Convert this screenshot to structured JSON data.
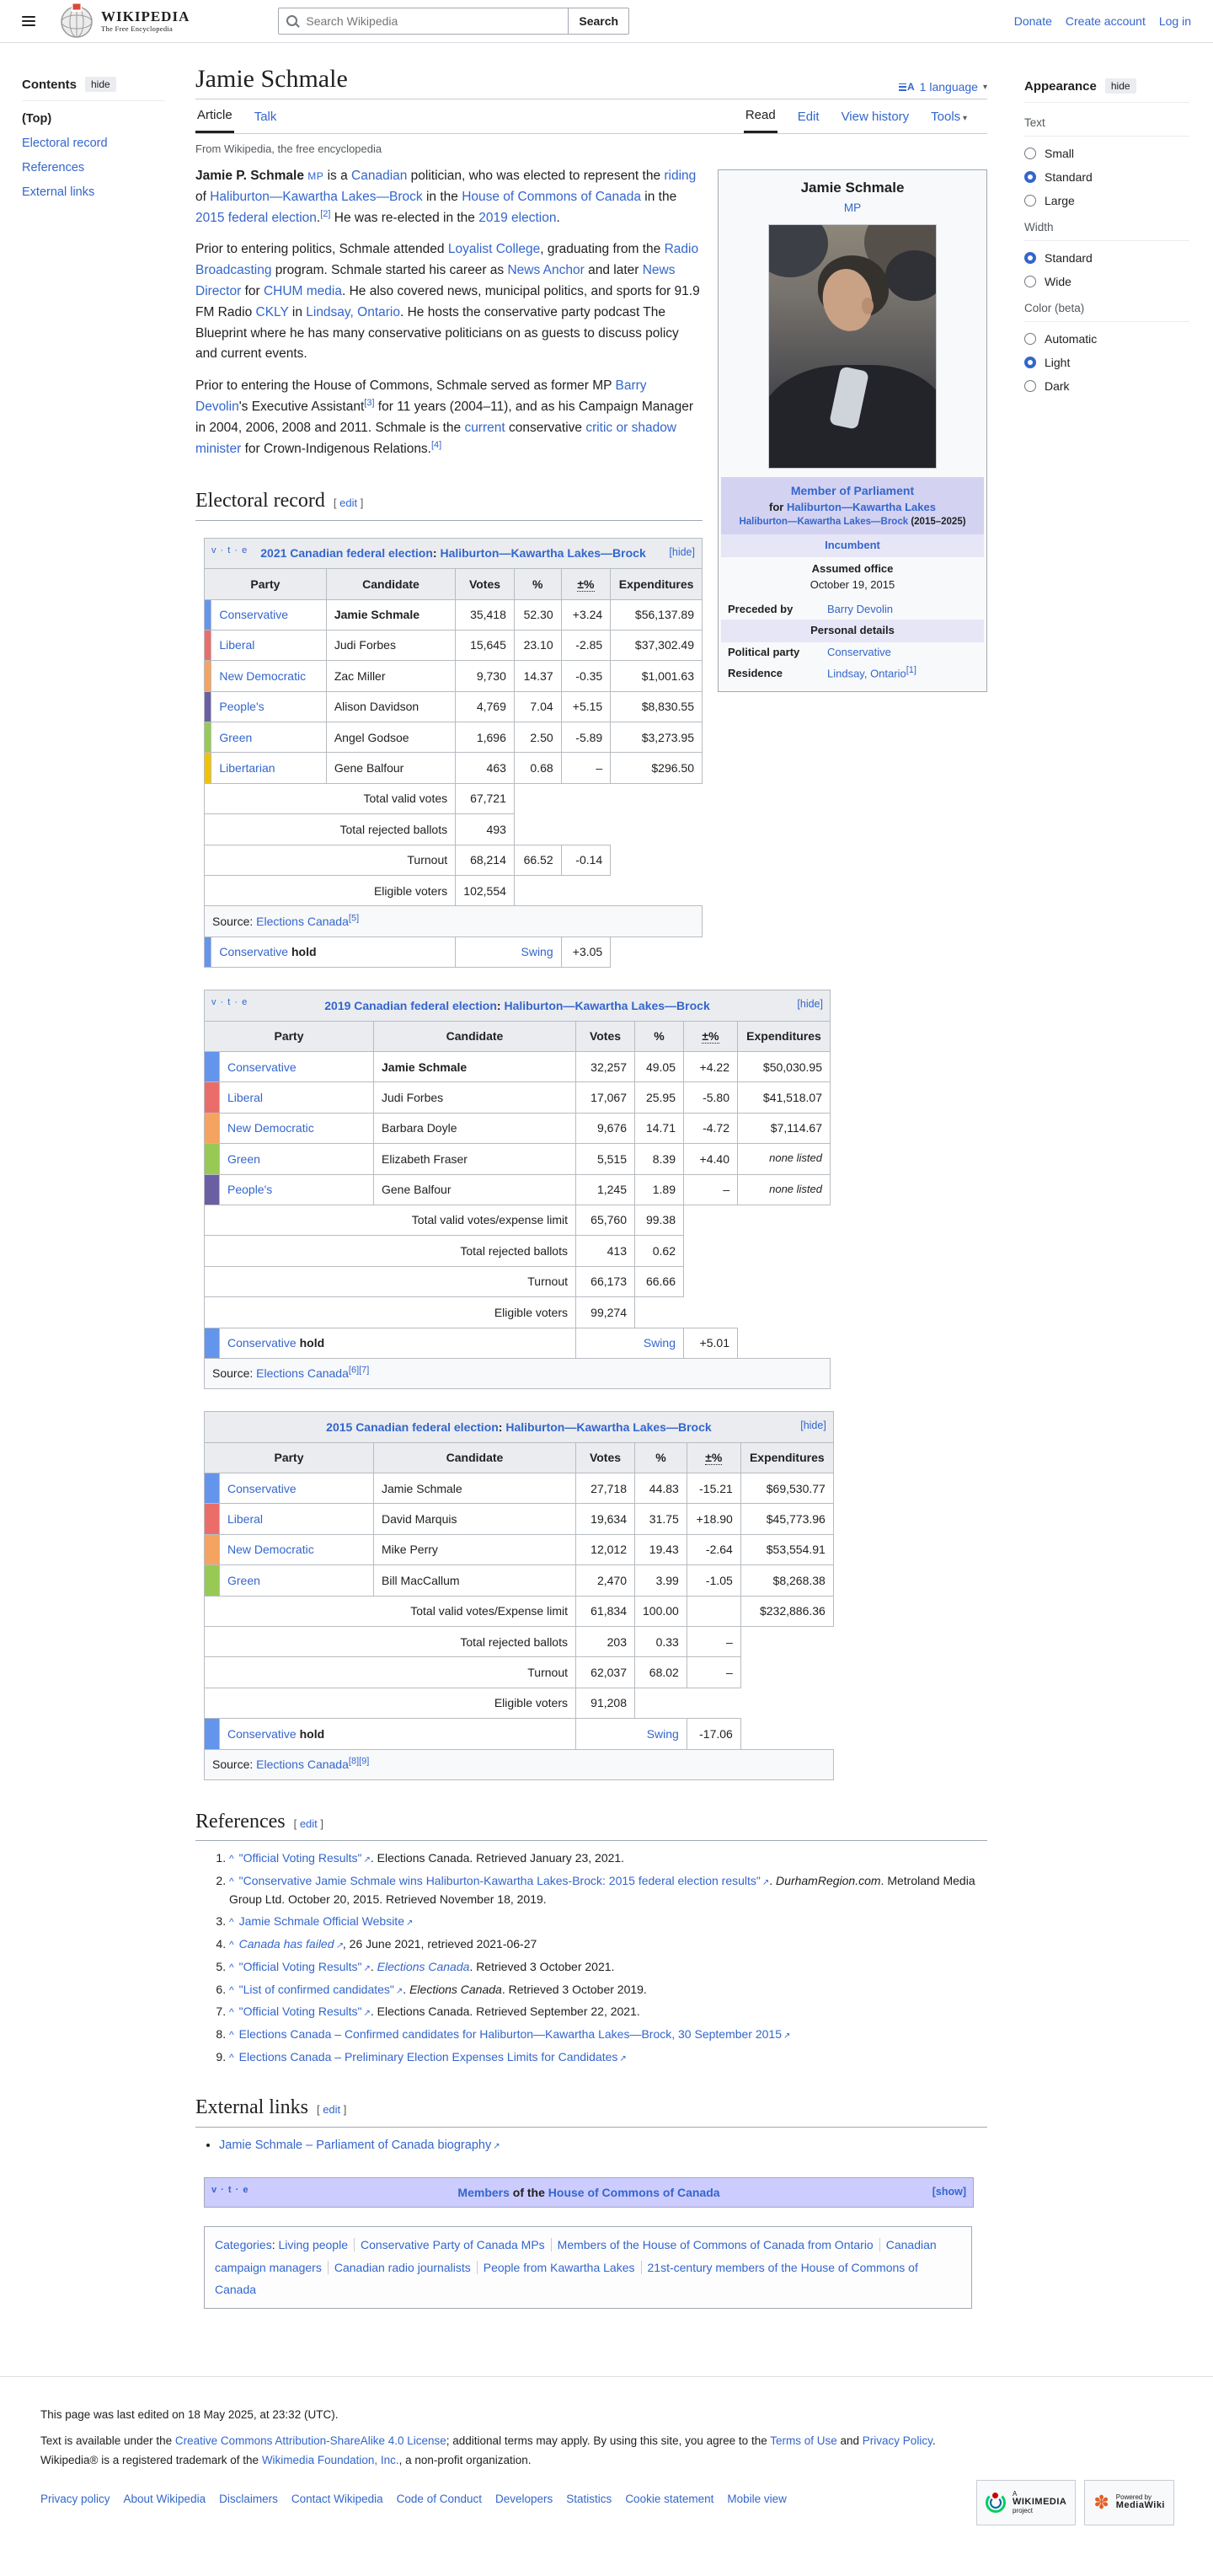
{
  "colors": {
    "link": "#3366cc",
    "table_header_bg": "#eaecf0",
    "navbox_title_bg": "#ccccff",
    "infobox_header_bg": "#d4d2f1",
    "conservative": "#6495ED",
    "liberal": "#EA6D6A",
    "ndp": "#F4A460",
    "peoples": "#6A5FA3",
    "green": "#99C955",
    "libertarian": "#F0C200"
  },
  "header": {
    "logo_title": "WIKIPEDIA",
    "logo_tagline": "The Free Encyclopedia",
    "search_placeholder": "Search Wikipedia",
    "search_button": "Search",
    "links": [
      "Donate",
      "Create account",
      "Log in"
    ]
  },
  "toc": {
    "title": "Contents",
    "hide": "hide",
    "items": [
      {
        "label": "(Top)",
        "active": true
      },
      {
        "label": "Electoral record",
        "active": false
      },
      {
        "label": "References",
        "active": false
      },
      {
        "label": "External links",
        "active": false
      }
    ]
  },
  "article": {
    "title": "Jamie Schmale",
    "language_count": "1 language",
    "tabs_left": [
      {
        "label": "Article",
        "active": true
      },
      {
        "label": "Talk",
        "active": false
      }
    ],
    "tabs_right": [
      {
        "label": "Read",
        "active": true
      },
      {
        "label": "Edit",
        "active": false
      },
      {
        "label": "View history",
        "active": false
      },
      {
        "label": "Tools",
        "active": false,
        "dropdown": true
      }
    ],
    "subtitle": "From Wikipedia, the free encyclopedia",
    "edit_label": "edit",
    "sections": {
      "electoral": "Electoral record",
      "references": "References",
      "external": "External links"
    }
  },
  "appearance": {
    "title": "Appearance",
    "hide": "hide",
    "sections": [
      {
        "title": "Text",
        "options": [
          "Small",
          "Standard",
          "Large"
        ],
        "selected": 1
      },
      {
        "title": "Width",
        "options": [
          "Standard",
          "Wide"
        ],
        "selected": 0
      },
      {
        "title": "Color (beta)",
        "options": [
          "Automatic",
          "Light",
          "Dark"
        ],
        "selected": 1
      }
    ]
  },
  "lead": {
    "p1": [
      {
        "t": "Jamie P. Schmale",
        "k": "b"
      },
      {
        "t": " ",
        "k": ""
      },
      {
        "t": "MP",
        "k": "mp"
      },
      {
        "t": " is a ",
        "k": ""
      },
      {
        "t": "Canadian",
        "k": "a"
      },
      {
        "t": " politician, who was elected to represent the ",
        "k": ""
      },
      {
        "t": "riding",
        "k": "a"
      },
      {
        "t": " of ",
        "k": ""
      },
      {
        "t": "Haliburton—Kawartha Lakes—Brock",
        "k": "a"
      },
      {
        "t": " in the ",
        "k": ""
      },
      {
        "t": "House of Commons of Canada",
        "k": "a"
      },
      {
        "t": " in the ",
        "k": ""
      },
      {
        "t": "2015 federal election",
        "k": "a"
      },
      {
        "t": ".",
        "k": ""
      },
      {
        "t": "[2]",
        "k": "s"
      },
      {
        "t": " He was re-elected in the ",
        "k": ""
      },
      {
        "t": "2019 election",
        "k": "a"
      },
      {
        "t": ".",
        "k": ""
      }
    ],
    "p2": [
      {
        "t": "Prior to entering politics, Schmale attended ",
        "k": ""
      },
      {
        "t": "Loyalist College",
        "k": "a"
      },
      {
        "t": ", graduating from the ",
        "k": ""
      },
      {
        "t": "Radio Broadcasting",
        "k": "a"
      },
      {
        "t": " program. Schmale started his career as ",
        "k": ""
      },
      {
        "t": "News Anchor",
        "k": "a"
      },
      {
        "t": " and later ",
        "k": ""
      },
      {
        "t": "News Director",
        "k": "a"
      },
      {
        "t": " for ",
        "k": ""
      },
      {
        "t": "CHUM media",
        "k": "a"
      },
      {
        "t": ". He also covered news, municipal politics, and sports for 91.9 FM Radio ",
        "k": ""
      },
      {
        "t": "CKLY",
        "k": "a"
      },
      {
        "t": " in ",
        "k": ""
      },
      {
        "t": "Lindsay, Ontario",
        "k": "a"
      },
      {
        "t": ". He hosts the conservative party podcast The Blueprint where he has many conservative politicians on as guests to discuss policy and current events.",
        "k": ""
      }
    ],
    "p3": [
      {
        "t": "Prior to entering the House of Commons, Schmale served as former MP ",
        "k": ""
      },
      {
        "t": "Barry Devolin",
        "k": "a"
      },
      {
        "t": "'s Executive Assistant",
        "k": ""
      },
      {
        "t": "[3]",
        "k": "s"
      },
      {
        "t": " for 11 years (2004–11), and as his Campaign Manager in 2004, 2006, 2008 and 2011. Schmale is the ",
        "k": ""
      },
      {
        "t": "current",
        "k": "a"
      },
      {
        "t": " conservative ",
        "k": ""
      },
      {
        "t": "critic or shadow minister",
        "k": "a"
      },
      {
        "t": " for Crown-Indigenous Relations.",
        "k": ""
      },
      {
        "t": "[4]",
        "k": "s"
      }
    ]
  },
  "infobox": {
    "name": "Jamie Schmale",
    "title": "MP",
    "office_line1": "Member of Parliament",
    "office_line2_prefix": "for ",
    "office_line2_link": "Haliburton—Kawartha Lakes",
    "office_line3_link": "Haliburton—Kawartha Lakes—Brock",
    "office_line3_suffix": " (2015–2025)",
    "incumbent": "Incumbent",
    "assumed_office_label": "Assumed office",
    "assumed_office_value": "October 19, 2015",
    "preceded_label": "Preceded by",
    "preceded_value": "Barry Devolin",
    "personal_header": "Personal details",
    "party_label": "Political party",
    "party_value": "Conservative",
    "residence_label": "Residence",
    "residence_value": "Lindsay, Ontario",
    "residence_ref": "[1]"
  },
  "tables": [
    {
      "vte": "v · t · e",
      "toggle": "[hide]",
      "title": [
        {
          "t": "2021 Canadian federal election",
          "k": "a"
        },
        {
          "t": ": ",
          "k": ""
        },
        {
          "t": "Haliburton—Kawartha Lakes—Brock",
          "k": "a"
        }
      ],
      "columns": [
        "Party",
        "Candidate",
        "Votes",
        "%",
        "±%",
        "Expenditures"
      ],
      "rows": [
        {
          "c": "#6495ED",
          "party": "Conservative",
          "cand": "Jamie Schmale",
          "bold": true,
          "v": "35,418",
          "p": "52.30",
          "d": "+3.24",
          "e": "$56,137.89"
        },
        {
          "c": "#EA6D6A",
          "party": "Liberal",
          "cand": "Judi Forbes",
          "bold": false,
          "v": "15,645",
          "p": "23.10",
          "d": "-2.85",
          "e": "$37,302.49"
        },
        {
          "c": "#F4A460",
          "party": "New Democratic",
          "cand": "Zac Miller",
          "bold": false,
          "v": "9,730",
          "p": "14.37",
          "d": "-0.35",
          "e": "$1,001.63"
        },
        {
          "c": "#6A5FA3",
          "party": "People's",
          "cand": "Alison Davidson",
          "bold": false,
          "v": "4,769",
          "p": "7.04",
          "d": "+5.15",
          "e": "$8,830.55"
        },
        {
          "c": "#99C955",
          "party": "Green",
          "cand": "Angel Godsoe",
          "bold": false,
          "v": "1,696",
          "p": "2.50",
          "d": "-5.89",
          "e": "$3,273.95"
        },
        {
          "c": "#F0C200",
          "party": "Libertarian",
          "cand": "Gene Balfour",
          "bold": false,
          "v": "463",
          "p": "0.68",
          "d": "–",
          "e": "$296.50"
        }
      ],
      "totals": [
        {
          "label": "Total valid votes",
          "v": "67,721",
          "p": "",
          "d": "",
          "e": ""
        },
        {
          "label": "Total rejected ballots",
          "v": "493",
          "p": "",
          "d": "",
          "e": ""
        },
        {
          "label": "Turnout",
          "v": "68,214",
          "p": "66.52",
          "d": "-0.14",
          "e": ""
        },
        {
          "label": "Eligible voters",
          "v": "102,554",
          "p": "",
          "d": "",
          "e": ""
        }
      ],
      "source": [
        {
          "t": "Source: ",
          "k": ""
        },
        {
          "t": "Elections Canada",
          "k": "a"
        },
        {
          "t": "[5]",
          "k": "s"
        }
      ],
      "hold": {
        "c": "#6495ED",
        "party": "Conservative",
        "word": "hold",
        "swing_label": "Swing",
        "swing": "+3.05"
      },
      "order": [
        "totals",
        "source",
        "hold"
      ]
    },
    {
      "vte": "v · t · e",
      "toggle": "[hide]",
      "title": [
        {
          "t": "2019 Canadian federal election",
          "k": "a"
        },
        {
          "t": ": ",
          "k": ""
        },
        {
          "t": "Haliburton—Kawartha Lakes—Brock",
          "k": "a"
        }
      ],
      "columns": [
        "Party",
        "Candidate",
        "Votes",
        "%",
        "±%",
        "Expenditures"
      ],
      "rows": [
        {
          "c": "#6495ED",
          "party": "Conservative",
          "cand": "Jamie Schmale",
          "bold": true,
          "v": "32,257",
          "p": "49.05",
          "d": "+4.22",
          "e": "$50,030.95"
        },
        {
          "c": "#EA6D6A",
          "party": "Liberal",
          "cand": "Judi Forbes",
          "bold": false,
          "v": "17,067",
          "p": "25.95",
          "d": "-5.80",
          "e": "$41,518.07"
        },
        {
          "c": "#F4A460",
          "party": "New Democratic",
          "cand": "Barbara Doyle",
          "bold": false,
          "v": "9,676",
          "p": "14.71",
          "d": "-4.72",
          "e": "$7,114.67"
        },
        {
          "c": "#99C955",
          "party": "Green",
          "cand": "Elizabeth Fraser",
          "bold": false,
          "v": "5,515",
          "p": "8.39",
          "d": "+4.40",
          "e": "none listed"
        },
        {
          "c": "#6A5FA3",
          "party": "People's",
          "cand": "Gene Balfour",
          "bold": false,
          "v": "1,245",
          "p": "1.89",
          "d": "–",
          "e": "none listed"
        }
      ],
      "totals": [
        {
          "label": "Total valid votes/expense limit",
          "v": "65,760",
          "p": "99.38",
          "d": "",
          "e": ""
        },
        {
          "label": "Total rejected ballots",
          "v": "413",
          "p": "0.62",
          "d": "",
          "e": ""
        },
        {
          "label": "Turnout",
          "v": "66,173",
          "p": "66.66",
          "d": "",
          "e": ""
        },
        {
          "label": "Eligible voters",
          "v": "99,274",
          "p": "",
          "d": "",
          "e": ""
        }
      ],
      "source": [
        {
          "t": "Source: ",
          "k": ""
        },
        {
          "t": "Elections Canada",
          "k": "a"
        },
        {
          "t": "[6][7]",
          "k": "s"
        }
      ],
      "hold": {
        "c": "#6495ED",
        "party": "Conservative",
        "word": "hold",
        "swing_label": "Swing",
        "swing": "+5.01"
      },
      "order": [
        "totals",
        "hold",
        "source"
      ]
    },
    {
      "vte": "",
      "toggle": "[hide]",
      "title": [
        {
          "t": "2015 Canadian federal election",
          "k": "a"
        },
        {
          "t": ": ",
          "k": ""
        },
        {
          "t": "Haliburton—Kawartha Lakes—Brock",
          "k": "a"
        }
      ],
      "columns": [
        "Party",
        "Candidate",
        "Votes",
        "%",
        "±%",
        "Expenditures"
      ],
      "rows": [
        {
          "c": "#6495ED",
          "party": "Conservative",
          "cand": "Jamie Schmale",
          "bold": false,
          "v": "27,718",
          "p": "44.83",
          "d": "-15.21",
          "e": "$69,530.77"
        },
        {
          "c": "#EA6D6A",
          "party": "Liberal",
          "cand": "David Marquis",
          "bold": false,
          "v": "19,634",
          "p": "31.75",
          "d": "+18.90",
          "e": "$45,773.96"
        },
        {
          "c": "#F4A460",
          "party": "New Democratic",
          "cand": "Mike Perry",
          "bold": false,
          "v": "12,012",
          "p": "19.43",
          "d": "-2.64",
          "e": "$53,554.91"
        },
        {
          "c": "#99C955",
          "party": "Green",
          "cand": "Bill MacCallum",
          "bold": false,
          "v": "2,470",
          "p": "3.99",
          "d": "-1.05",
          "e": "$8,268.38"
        }
      ],
      "totals": [
        {
          "label": "Total valid votes/Expense limit",
          "v": "61,834",
          "p": "100.00",
          "d": "",
          "e": "$232,886.36"
        },
        {
          "label": "Total rejected ballots",
          "v": "203",
          "p": "0.33",
          "d": "–",
          "e": ""
        },
        {
          "label": "Turnout",
          "v": "62,037",
          "p": "68.02",
          "d": "–",
          "e": ""
        },
        {
          "label": "Eligible voters",
          "v": "91,208",
          "p": "",
          "d": "",
          "e": ""
        }
      ],
      "source": [
        {
          "t": "Source: ",
          "k": ""
        },
        {
          "t": "Elections Canada",
          "k": "a"
        },
        {
          "t": "[8][9]",
          "k": "s"
        }
      ],
      "hold": {
        "c": "#6495ED",
        "party": "Conservative",
        "word": "hold",
        "swing_label": "Swing",
        "swing": "-17.06"
      },
      "order": [
        "totals",
        "hold",
        "source"
      ]
    }
  ],
  "references": {
    "caret": "^",
    "items": [
      [
        {
          "t": "\"Official Voting Results\"",
          "k": "ae"
        },
        {
          "t": ". Elections Canada. Retrieved January 23, 2021.",
          "k": ""
        }
      ],
      [
        {
          "t": "\"Conservative Jamie Schmale wins Haliburton-Kawartha Lakes-Brock: 2015 federal election results\"",
          "k": "ae"
        },
        {
          "t": ". ",
          "k": ""
        },
        {
          "t": "DurhamRegion.com",
          "k": "i"
        },
        {
          "t": ". Metroland Media Group Ltd. October 20, 2015. Retrieved November 18, 2019.",
          "k": ""
        }
      ],
      [
        {
          "t": "Jamie Schmale Official Website",
          "k": "ae"
        }
      ],
      [
        {
          "t": "Canada has failed",
          "k": "aie"
        },
        {
          "t": ", 26 June 2021, retrieved 2021-06-27",
          "k": ""
        }
      ],
      [
        {
          "t": "\"Official Voting Results\"",
          "k": "ae"
        },
        {
          "t": ". ",
          "k": ""
        },
        {
          "t": "Elections Canada",
          "k": "ai"
        },
        {
          "t": ". Retrieved 3 October 2021.",
          "k": ""
        }
      ],
      [
        {
          "t": "\"List of confirmed candidates\"",
          "k": "ae"
        },
        {
          "t": ". ",
          "k": ""
        },
        {
          "t": "Elections Canada",
          "k": "i"
        },
        {
          "t": ". Retrieved 3 October 2019.",
          "k": ""
        }
      ],
      [
        {
          "t": "\"Official Voting Results\"",
          "k": "ae"
        },
        {
          "t": ". Elections Canada. Retrieved September 22, 2021.",
          "k": ""
        }
      ],
      [
        {
          "t": "Elections Canada – Confirmed candidates for Haliburton—Kawartha Lakes—Brock, 30 September 2015",
          "k": "ae"
        }
      ],
      [
        {
          "t": "Elections Canada – Preliminary Election Expenses Limits for Candidates",
          "k": "ae"
        }
      ]
    ]
  },
  "external_links": [
    [
      {
        "t": "Jamie Schmale – Parliament of Canada biography",
        "k": "ae"
      }
    ]
  ],
  "navbox": {
    "vte": "v · t · e",
    "title": [
      {
        "t": "Members",
        "k": "a"
      },
      {
        "t": " of the ",
        "k": ""
      },
      {
        "t": "House of Commons of Canada",
        "k": "a"
      }
    ],
    "toggle": "[show]"
  },
  "categories": {
    "label": "Categories",
    "items": [
      "Living people",
      "Conservative Party of Canada MPs",
      "Members of the House of Commons of Canada from Ontario",
      "Canadian campaign managers",
      "Canadian radio journalists",
      "People from Kawartha Lakes",
      "21st-century members of the House of Commons of Canada"
    ]
  },
  "footer": {
    "last_edited": "This page was last edited on 18 May 2025, at 23:32 (UTC).",
    "license": [
      {
        "t": "Text is available under the ",
        "k": ""
      },
      {
        "t": "Creative Commons Attribution-ShareAlike 4.0 License",
        "k": "a"
      },
      {
        "t": "; additional terms may apply. By using this site, you agree to the ",
        "k": ""
      },
      {
        "t": "Terms of Use",
        "k": "a"
      },
      {
        "t": " and ",
        "k": ""
      },
      {
        "t": "Privacy Policy",
        "k": "a"
      },
      {
        "t": ". Wikipedia® is a registered trademark of the ",
        "k": ""
      },
      {
        "t": "Wikimedia Foundation, Inc.",
        "k": "a"
      },
      {
        "t": ", a non-profit organization.",
        "k": ""
      }
    ],
    "links": [
      "Privacy policy",
      "About Wikipedia",
      "Disclaimers",
      "Contact Wikipedia",
      "Code of Conduct",
      "Developers",
      "Statistics",
      "Cookie statement",
      "Mobile view"
    ],
    "badge_wikimedia": [
      "A",
      "WIKIMEDIA",
      "project"
    ],
    "badge_mediawiki": [
      "Powered by",
      "MediaWiki"
    ]
  }
}
